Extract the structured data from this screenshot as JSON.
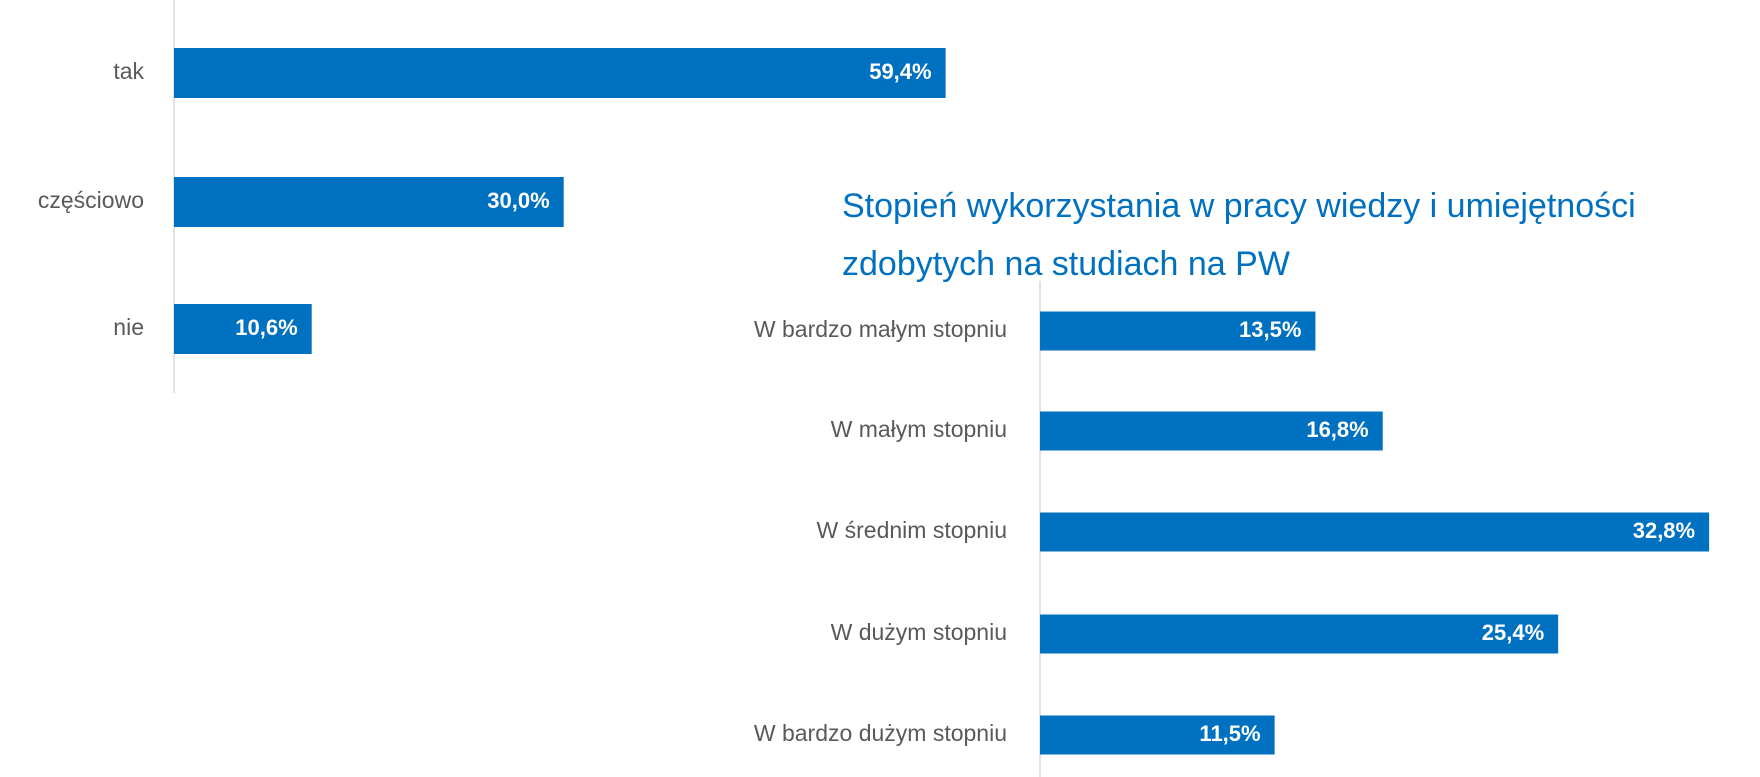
{
  "chart_data": [
    {
      "type": "bar",
      "orientation": "horizontal",
      "categories": [
        "tak",
        "częściowo",
        "nie"
      ],
      "values": [
        59.4,
        30.0,
        10.6
      ],
      "value_labels": [
        "59,4%",
        "30,0%",
        "10,6%"
      ],
      "color": "#0070c0"
    },
    {
      "type": "bar",
      "orientation": "horizontal",
      "title": [
        "Stopień wykorzystania w pracy wiedzy i umiejętności",
        "zdobytych na studiach na PW"
      ],
      "categories": [
        "W bardzo małym stopniu",
        "W małym stopniu",
        "W średnim stopniu",
        "W dużym stopniu",
        "W bardzo dużym stopniu"
      ],
      "values": [
        13.5,
        16.8,
        32.8,
        25.4,
        11.5
      ],
      "value_labels": [
        "13,5%",
        "16,8%",
        "32,8%",
        "25,4%",
        "11,5%"
      ],
      "color": "#0070c0"
    }
  ]
}
